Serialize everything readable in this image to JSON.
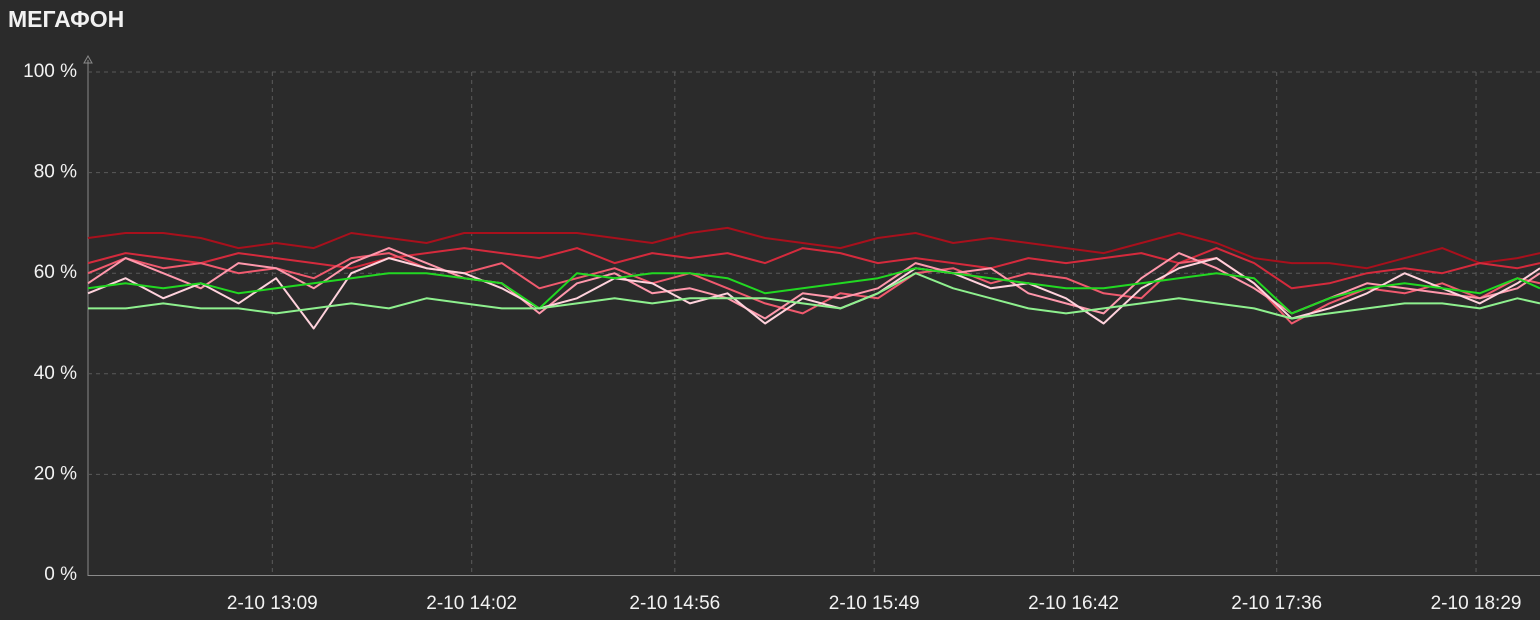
{
  "chart_data": {
    "type": "line",
    "title": "МЕГАФОН",
    "x": [
      740,
      750,
      760,
      770,
      780,
      790,
      800,
      810,
      820,
      830,
      840,
      850,
      860,
      870,
      880,
      890,
      900,
      910,
      920,
      930,
      940,
      950,
      960,
      970,
      980,
      990,
      1000,
      1010,
      1020,
      1030,
      1040,
      1050,
      1060,
      1070,
      1080,
      1090,
      1100,
      1110,
      1120,
      1126
    ],
    "xlim": [
      740,
      1126
    ],
    "xticks": [
      {
        "value": 789,
        "label": "2-10 13:09"
      },
      {
        "value": 842,
        "label": "2-10 14:02"
      },
      {
        "value": 896,
        "label": "2-10 14:56"
      },
      {
        "value": 949,
        "label": "2-10 15:49"
      },
      {
        "value": 1002,
        "label": "2-10 16:42"
      },
      {
        "value": 1056,
        "label": "2-10 17:36"
      },
      {
        "value": 1109,
        "label": "2-10 18:29"
      }
    ],
    "ylim": [
      0,
      100
    ],
    "yticks": [
      {
        "value": 0,
        "label": "0 %"
      },
      {
        "value": 20,
        "label": "20 %"
      },
      {
        "value": 40,
        "label": "40 %"
      },
      {
        "value": 60,
        "label": "60 %"
      },
      {
        "value": 80,
        "label": "80 %"
      },
      {
        "value": 100,
        "label": "100 %"
      }
    ],
    "grid": true,
    "series": [
      {
        "color": "#a8101c",
        "values": [
          67,
          68,
          68,
          67,
          65,
          66,
          65,
          68,
          67,
          66,
          68,
          68,
          68,
          68,
          67,
          66,
          68,
          69,
          67,
          66,
          65,
          67,
          68,
          66,
          67,
          66,
          65,
          64,
          66,
          68,
          66,
          63,
          62,
          62,
          61,
          63,
          65,
          62,
          63,
          64
        ]
      },
      {
        "color": "#d42a3c",
        "values": [
          62,
          64,
          63,
          62,
          64,
          63,
          62,
          61,
          63,
          64,
          65,
          64,
          63,
          65,
          62,
          64,
          63,
          64,
          62,
          65,
          64,
          62,
          63,
          62,
          61,
          63,
          62,
          63,
          64,
          62,
          65,
          62,
          57,
          58,
          60,
          61,
          60,
          62,
          61,
          62
        ]
      },
      {
        "color": "#f05a6e",
        "values": [
          60,
          63,
          61,
          62,
          60,
          61,
          59,
          63,
          64,
          61,
          60,
          62,
          57,
          59,
          61,
          58,
          60,
          57,
          54,
          52,
          56,
          55,
          60,
          61,
          58,
          60,
          59,
          56,
          55,
          62,
          63,
          58,
          50,
          54,
          57,
          56,
          58,
          55,
          59,
          58
        ]
      },
      {
        "color": "#ff98ac",
        "values": [
          58,
          63,
          60,
          57,
          62,
          61,
          57,
          62,
          65,
          62,
          59,
          58,
          52,
          58,
          60,
          56,
          57,
          55,
          51,
          56,
          55,
          57,
          62,
          60,
          61,
          56,
          54,
          52,
          59,
          64,
          61,
          57,
          52,
          55,
          58,
          57,
          56,
          55,
          57,
          60
        ]
      },
      {
        "color": "#ffd2dc",
        "values": [
          56,
          59,
          55,
          58,
          54,
          59,
          49,
          60,
          63,
          61,
          60,
          57,
          53,
          55,
          59,
          58,
          54,
          56,
          50,
          55,
          53,
          56,
          61,
          60,
          57,
          58,
          55,
          50,
          57,
          61,
          63,
          58,
          51,
          53,
          56,
          60,
          57,
          54,
          58,
          61
        ]
      },
      {
        "color": "#22d822",
        "values": [
          57,
          58,
          57,
          58,
          56,
          57,
          58,
          59,
          60,
          60,
          59,
          58,
          53,
          60,
          59,
          60,
          60,
          59,
          56,
          57,
          58,
          59,
          61,
          60,
          59,
          58,
          57,
          57,
          58,
          59,
          60,
          59,
          52,
          55,
          57,
          58,
          57,
          56,
          59,
          57
        ]
      },
      {
        "color": "#8ef08e",
        "values": [
          53,
          53,
          54,
          53,
          53,
          52,
          53,
          54,
          53,
          55,
          54,
          53,
          53,
          54,
          55,
          54,
          55,
          55,
          55,
          54,
          53,
          56,
          60,
          57,
          55,
          53,
          52,
          53,
          54,
          55,
          54,
          53,
          51,
          52,
          53,
          54,
          54,
          53,
          55,
          54
        ]
      }
    ]
  }
}
